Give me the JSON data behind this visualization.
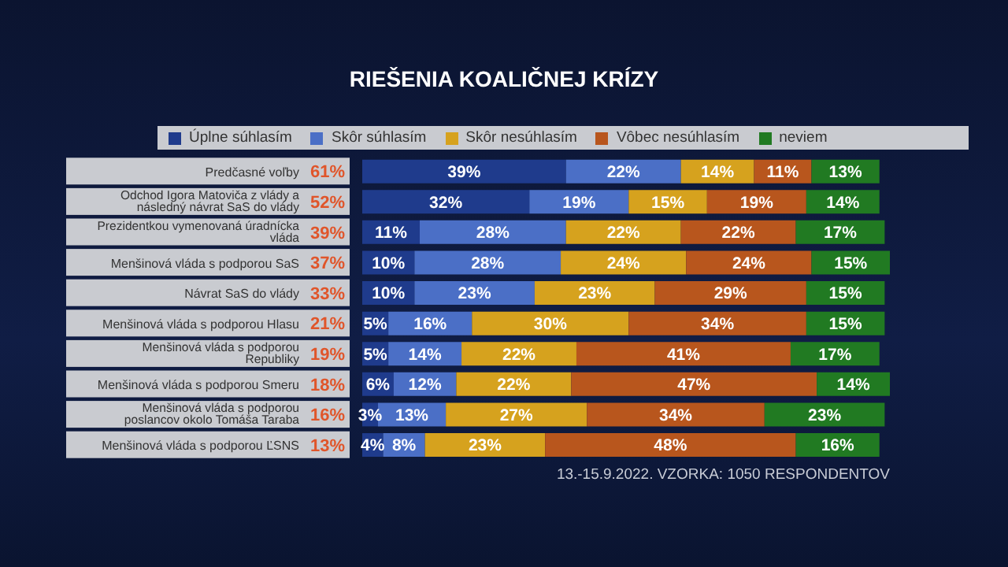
{
  "chart_data": {
    "type": "bar",
    "orientation": "horizontal",
    "stacked": true,
    "title": "RIEŠENIA KOALIČNEJ KRÍZY",
    "categories": [
      "Predčasné voľby",
      "Odchod Igora Matoviča z vlády a následný návrat SaS do vlády",
      "Prezidentkou vymenovaná úradnícka vláda",
      "Menšinová vláda s podporou SaS",
      "Návrat SaS do vlády",
      "Menšinová vláda s podporou Hlasu",
      "Menšinová vláda s podporou Republiky",
      "Menšinová vláda s podporou Smeru",
      "Menšinová vláda s podporou poslancov okolo Tomáša Taraba",
      "Menšinová vláda s podporou ĽSNS"
    ],
    "series": [
      {
        "name": "Úplne súhlasím",
        "color": "#1f3b8c",
        "values": [
          39,
          32,
          11,
          10,
          10,
          5,
          5,
          6,
          3,
          4
        ],
        "value_labels": [
          "39%",
          "32%",
          "11%",
          "10%",
          "10%",
          "5%",
          "5%",
          "6%",
          "3%",
          "4%"
        ]
      },
      {
        "name": "Skôr súhlasím",
        "color": "#4b6fc6",
        "values": [
          22,
          19,
          28,
          28,
          23,
          16,
          14,
          12,
          13,
          8
        ],
        "value_labels": [
          "22%",
          "19%",
          "28%",
          "28%",
          "23%",
          "16%",
          "14%",
          "12%",
          "13%",
          "8%"
        ]
      },
      {
        "name": "Skôr nesúhlasím",
        "color": "#d6a21e",
        "values": [
          14,
          15,
          22,
          24,
          23,
          30,
          22,
          22,
          27,
          23
        ],
        "value_labels": [
          "14%",
          "15%",
          "22%",
          "24%",
          "23%",
          "30%",
          "22%",
          "22%",
          "27%",
          "23%"
        ]
      },
      {
        "name": "Vôbec nesúhlasím",
        "color": "#b8561d",
        "values": [
          11,
          19,
          22,
          24,
          29,
          34,
          41,
          47,
          34,
          48
        ],
        "value_labels": [
          "11%",
          "19%",
          "22%",
          "24%",
          "29%",
          "34%",
          "41%",
          "47%",
          "34%",
          "48%"
        ]
      },
      {
        "name": "neviem",
        "color": "#217a22",
        "values": [
          13,
          14,
          17,
          15,
          15,
          15,
          17,
          14,
          23,
          16
        ],
        "value_labels": [
          "13%",
          "14%",
          "17%",
          "15%",
          "15%",
          "15%",
          "17%",
          "14%",
          "23%",
          "16%"
        ]
      }
    ],
    "xlim": [
      0,
      101
    ],
    "tick_labels": "y",
    "grid": false,
    "legend": "top",
    "annotations": [
      "61%",
      "52%",
      "39%",
      "37%",
      "33%",
      "21%",
      "19%",
      "18%",
      "16%",
      "13%",
      "13.-15.9.2022. VZORKA: 1050 RESPONDENTOV"
    ]
  }
}
